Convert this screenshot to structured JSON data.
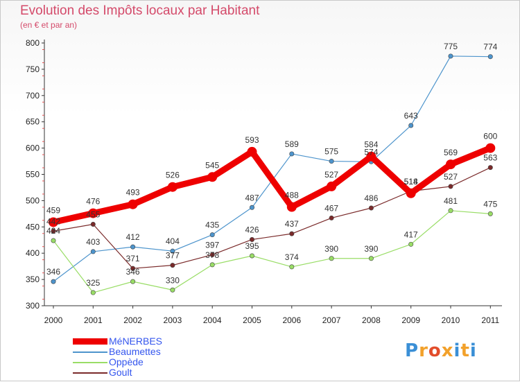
{
  "title": "Evolution des Impôts locaux par Habitant",
  "subtitle": "(en € et par an)",
  "logo": {
    "text": "Proxiti",
    "colors": [
      "#3a8fd6",
      "#f2a12b",
      "#e24d2b",
      "#f2a12b",
      "#3a8fd6",
      "#f2a12b",
      "#3a8fd6"
    ]
  },
  "chart_data": {
    "type": "line",
    "title": "Evolution des Impôts locaux par Habitant",
    "subtitle": "(en € et par an)",
    "xlabel": "",
    "ylabel": "",
    "x": [
      "2000",
      "2001",
      "2002",
      "2003",
      "2004",
      "2005",
      "2006",
      "2007",
      "2008",
      "2009",
      "2010",
      "2011"
    ],
    "ylim": [
      300,
      800
    ],
    "yticks": [
      300,
      350,
      400,
      450,
      500,
      550,
      600,
      650,
      700,
      750,
      800
    ],
    "grid": false,
    "legend_position": "bottom-left",
    "series": [
      {
        "name": "MéNERBES",
        "color": "#ee0000",
        "weight": "bold",
        "values": [
          459,
          476,
          493,
          526,
          545,
          593,
          488,
          527,
          584,
          514,
          569,
          600
        ],
        "labels": [
          "459",
          "476",
          "493",
          "526",
          "545",
          "593",
          "488",
          "527",
          "584",
          "514",
          "569",
          "600"
        ]
      },
      {
        "name": "Beaumettes",
        "color": "#4d94cc",
        "weight": "normal",
        "values": [
          346,
          403,
          412,
          404,
          435,
          487,
          589,
          575,
          574,
          643,
          775,
          774
        ],
        "labels": [
          "346",
          "403",
          "412",
          "404",
          "435",
          "487",
          "589",
          "575",
          "574",
          "643",
          "775",
          "774"
        ]
      },
      {
        "name": "Oppède",
        "color": "#99dd66",
        "weight": "normal",
        "values": [
          424,
          325,
          346,
          330,
          378,
          395,
          374,
          390,
          390,
          417,
          481,
          475
        ],
        "labels": [
          "424",
          "325",
          "346",
          "330",
          "378",
          "395",
          "374",
          "390",
          "390",
          "417",
          "481",
          "475"
        ]
      },
      {
        "name": "Goult",
        "color": "#7a2a2a",
        "weight": "normal",
        "values": [
          442,
          455,
          371,
          377,
          397,
          426,
          437,
          467,
          486,
          518,
          527,
          563
        ],
        "labels": [
          "442",
          "455",
          "371",
          "377",
          "397",
          "426",
          "437",
          "467",
          "486",
          "518",
          "527",
          "563"
        ]
      }
    ]
  }
}
